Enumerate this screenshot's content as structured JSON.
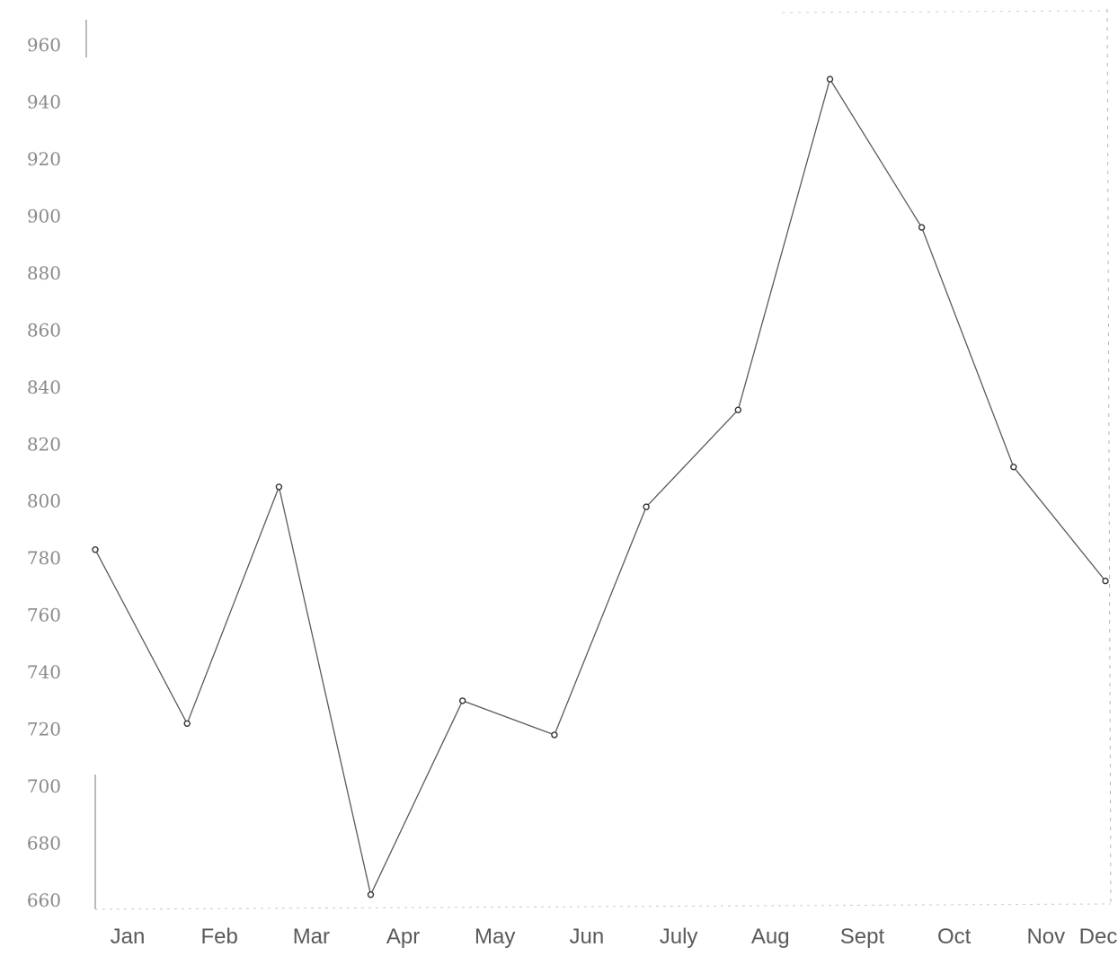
{
  "chart_data": {
    "type": "line",
    "title": "",
    "xlabel": "",
    "ylabel": "",
    "categories": [
      "Jan",
      "Feb",
      "Mar",
      "Apr",
      "May",
      "Jun",
      "July",
      "Aug",
      "Sept",
      "Oct",
      "Nov",
      "Dec"
    ],
    "series": [
      {
        "values": [
          783,
          722,
          805,
          662,
          730,
          718,
          798,
          832,
          948,
          896,
          812,
          772
        ]
      }
    ],
    "yticks": [
      "660",
      "680",
      "700",
      "720",
      "740",
      "760",
      "780",
      "800",
      "820",
      "840",
      "860",
      "880",
      "900",
      "920",
      "940",
      "960"
    ],
    "ylim": [
      660,
      960
    ],
    "grid": false,
    "legend": "none",
    "colors": {
      "line": "#5a5a5a",
      "axis": "#777777",
      "text": "#7a7a7a"
    }
  }
}
